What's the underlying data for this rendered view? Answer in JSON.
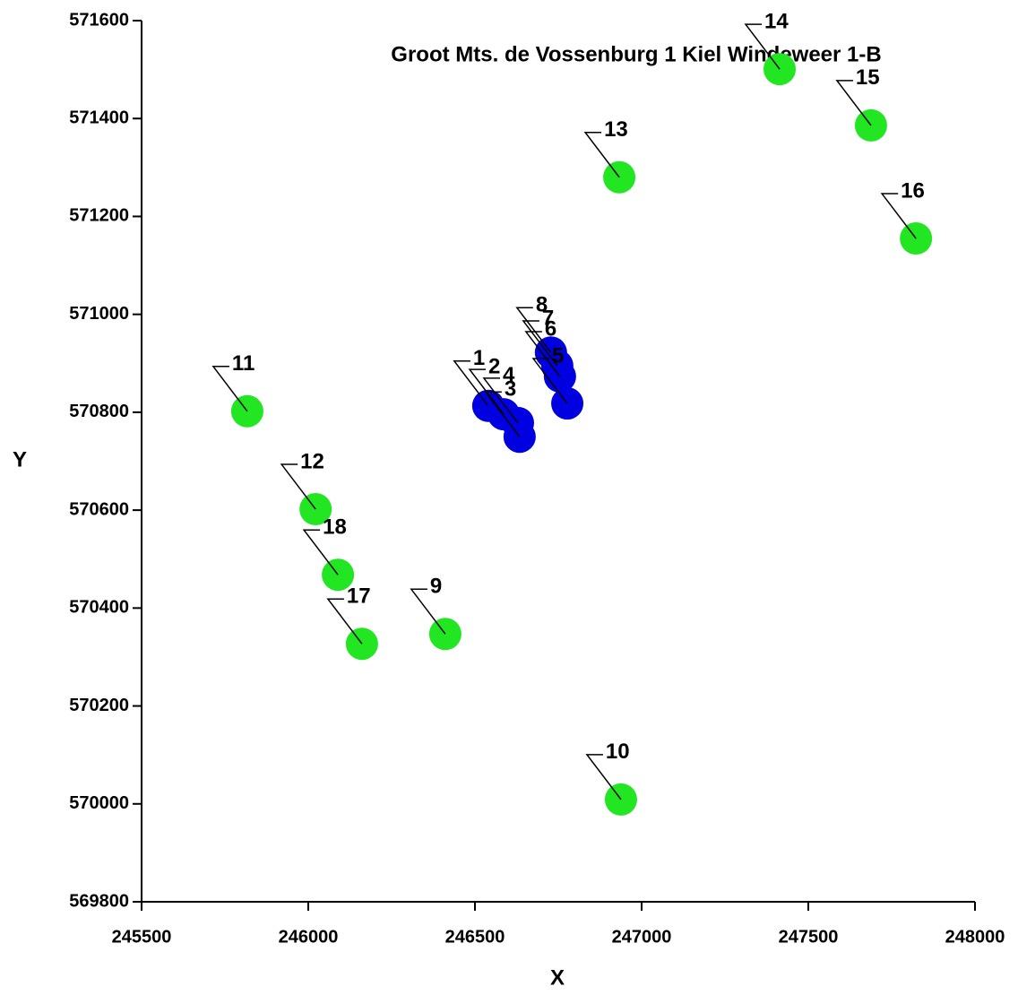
{
  "chart_data": {
    "type": "scatter",
    "title": "Groot Mts. de Vossenburg 1 Kiel Windeweer 1-B",
    "xlabel": "X",
    "ylabel": "Y",
    "xlim": [
      245500,
      248000
    ],
    "xticks": [
      245500,
      246000,
      246500,
      247000,
      247500,
      248000
    ],
    "ylim": [
      569800,
      571600
    ],
    "yticks": [
      569800,
      570000,
      570200,
      570400,
      570600,
      570800,
      571000,
      571200,
      571400,
      571600
    ],
    "series": [
      {
        "color": "#0000e0",
        "labels": [
          "1",
          "2",
          "3",
          "4",
          "5",
          "6",
          "7",
          "8"
        ],
        "x": [
          246540,
          246586,
          246634,
          246629,
          246777,
          246755,
          246747,
          246728
        ],
        "values": [
          570813,
          570796,
          570750,
          570778,
          570818,
          570873,
          570895,
          570922
        ]
      },
      {
        "color": "#22e622",
        "labels": [
          "9",
          "10",
          "11",
          "12",
          "13",
          "14",
          "15",
          "16",
          "17",
          "18"
        ],
        "x": [
          246411,
          246938,
          245817,
          246022,
          246933,
          247414,
          247688,
          247823,
          246161,
          246089
        ],
        "values": [
          570347,
          570009,
          570802,
          570602,
          571280,
          571501,
          571386,
          571155,
          570327,
          570468
        ]
      }
    ]
  }
}
